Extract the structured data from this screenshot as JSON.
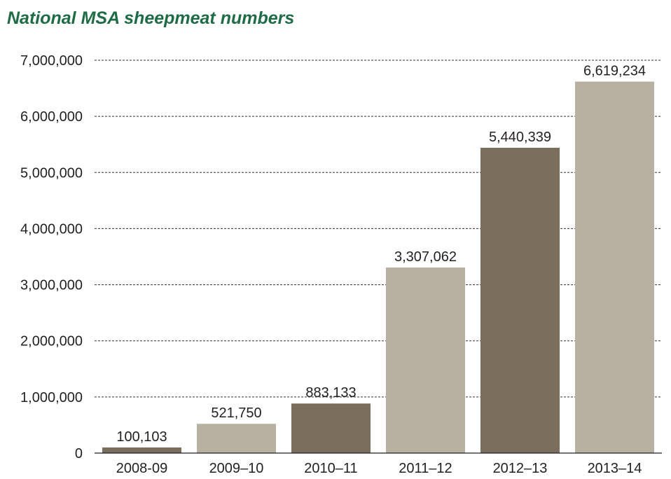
{
  "chart_data": {
    "type": "bar",
    "title": "National MSA sheepmeat numbers",
    "xlabel": "",
    "ylabel": "",
    "categories": [
      "2008-09",
      "2009–10",
      "2010–11",
      "2011–12",
      "2012–13",
      "2013–14"
    ],
    "values": [
      100103,
      521750,
      883133,
      3307062,
      5440339,
      6619234
    ],
    "data_labels": [
      "100,103",
      "521,750",
      "883,133",
      "3,307,062",
      "5,440,339",
      "6,619,234"
    ],
    "yticks": [
      0,
      1000000,
      2000000,
      3000000,
      4000000,
      5000000,
      6000000,
      7000000
    ],
    "ytick_labels": [
      "0",
      "1,000,000",
      "2,000,000",
      "3,000,000",
      "4,000,000",
      "5,000,000",
      "6,000,000",
      "7,000,000"
    ],
    "ylim": [
      0,
      7000000
    ],
    "grid": true,
    "legend": "none",
    "bar_colors": [
      "#7b6e5d",
      "#b8b1a1",
      "#7b6e5d",
      "#b8b1a1",
      "#7b6e5d",
      "#b8b1a1"
    ]
  },
  "colors": {
    "title": "#1e6b46",
    "text": "#231f20",
    "dark_bar": "#7b6e5d",
    "light_bar": "#b8b1a1"
  }
}
